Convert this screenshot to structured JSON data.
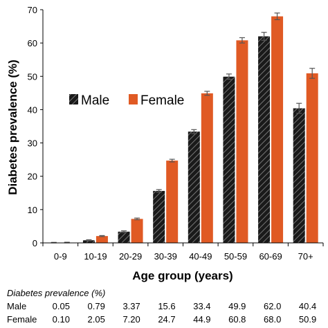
{
  "chart_data": {
    "type": "bar",
    "title": "",
    "xlabel": "Age group (years)",
    "ylabel": "Diabetes prevalence (%)",
    "ylim": [
      0,
      70
    ],
    "yticks": [
      0,
      10,
      20,
      30,
      40,
      50,
      60,
      70
    ],
    "grid": false,
    "legend_position": "center-left",
    "categories": [
      "0-9",
      "10-19",
      "20-29",
      "30-39",
      "40-49",
      "50-59",
      "60-69",
      "70+"
    ],
    "series": [
      {
        "name": "Male",
        "color": "#1a1a1a",
        "pattern": "diagonal-hatch",
        "values": [
          0.05,
          0.79,
          3.37,
          15.6,
          33.4,
          49.9,
          62.0,
          40.4
        ],
        "errors": [
          0.1,
          0.15,
          0.25,
          0.4,
          0.6,
          0.8,
          1.2,
          1.5
        ]
      },
      {
        "name": "Female",
        "color": "#e05a24",
        "pattern": "solid",
        "values": [
          0.1,
          2.05,
          7.2,
          24.7,
          44.9,
          60.8,
          68.0,
          50.9
        ],
        "errors": [
          0.1,
          0.15,
          0.25,
          0.4,
          0.6,
          0.8,
          1.0,
          1.5
        ]
      }
    ]
  },
  "table": {
    "caption": "Diabetes prevalence (%)",
    "rows": [
      {
        "label": "Male",
        "values": [
          "0.05",
          "0.79",
          "3.37",
          "15.6",
          "33.4",
          "49.9",
          "62.0",
          "40.4"
        ]
      },
      {
        "label": "Female",
        "values": [
          "0.10",
          "2.05",
          "7.20",
          "24.7",
          "44.9",
          "60.8",
          "68.0",
          "50.9"
        ]
      }
    ]
  }
}
